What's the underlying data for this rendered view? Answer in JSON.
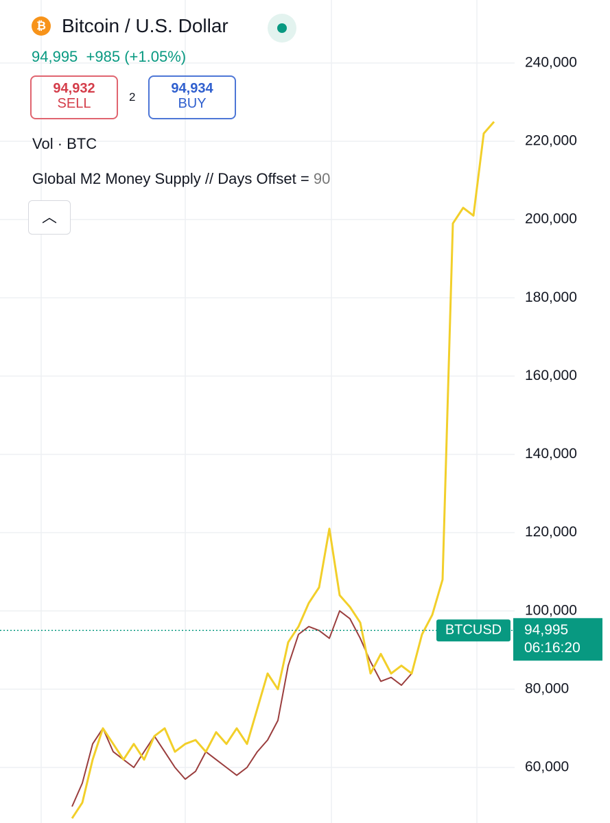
{
  "header": {
    "title": "Bitcoin / U.S. Dollar",
    "price": "94,995",
    "change": "+985 (+1.05%)",
    "sell_price": "94,932",
    "sell_label": "SELL",
    "spread": "2",
    "buy_price": "94,934",
    "buy_label": "BUY",
    "volume": "Vol · BTC",
    "indicator": "Global M2 Money Supply // Days Offset =",
    "indicator_value": "90"
  },
  "chart_data": {
    "type": "line",
    "ylim": [
      45800,
      256100
    ],
    "yticks": [
      {
        "value": 60000,
        "label": "60,000"
      },
      {
        "value": 80000,
        "label": "80,000"
      },
      {
        "value": 100000,
        "label": "100,000"
      },
      {
        "value": 120000,
        "label": "120,000"
      },
      {
        "value": 140000,
        "label": "140,000"
      },
      {
        "value": 160000,
        "label": "160,000"
      },
      {
        "value": 180000,
        "label": "180,000"
      },
      {
        "value": 200000,
        "label": "200,000"
      },
      {
        "value": 220000,
        "label": "220,000"
      },
      {
        "value": 240000,
        "label": "240,000"
      }
    ],
    "grid": true,
    "series": [
      {
        "name": "Global M2 Money Supply",
        "color": "#f2cf2a",
        "values": [
          47000,
          51000,
          62000,
          70000,
          66000,
          62000,
          66000,
          62000,
          68000,
          70000,
          64000,
          66000,
          67000,
          64000,
          69000,
          66000,
          70000,
          66000,
          75000,
          84000,
          80000,
          92000,
          96000,
          102000,
          106000,
          121000,
          104000,
          101000,
          97000,
          84000,
          89000,
          84000,
          86000,
          84000,
          94000,
          99000,
          108000,
          199000,
          203000,
          201000,
          222000,
          225000
        ]
      },
      {
        "name": "BTCUSD",
        "color": "#9a3d3d",
        "values": [
          50000,
          56000,
          66000,
          70000,
          64000,
          62000,
          60000,
          64000,
          68000,
          64000,
          60000,
          57000,
          59000,
          64000,
          62000,
          60000,
          58000,
          60000,
          64000,
          67000,
          72000,
          86000,
          94000,
          96000,
          95000,
          93000,
          100000,
          98000,
          93000,
          87000,
          82000,
          83000,
          81000,
          84000,
          94000,
          null,
          null,
          null,
          null,
          null,
          null,
          null
        ]
      }
    ],
    "last_price": {
      "value": 94995,
      "label": "94,995"
    },
    "countdown": "06:16:20"
  }
}
